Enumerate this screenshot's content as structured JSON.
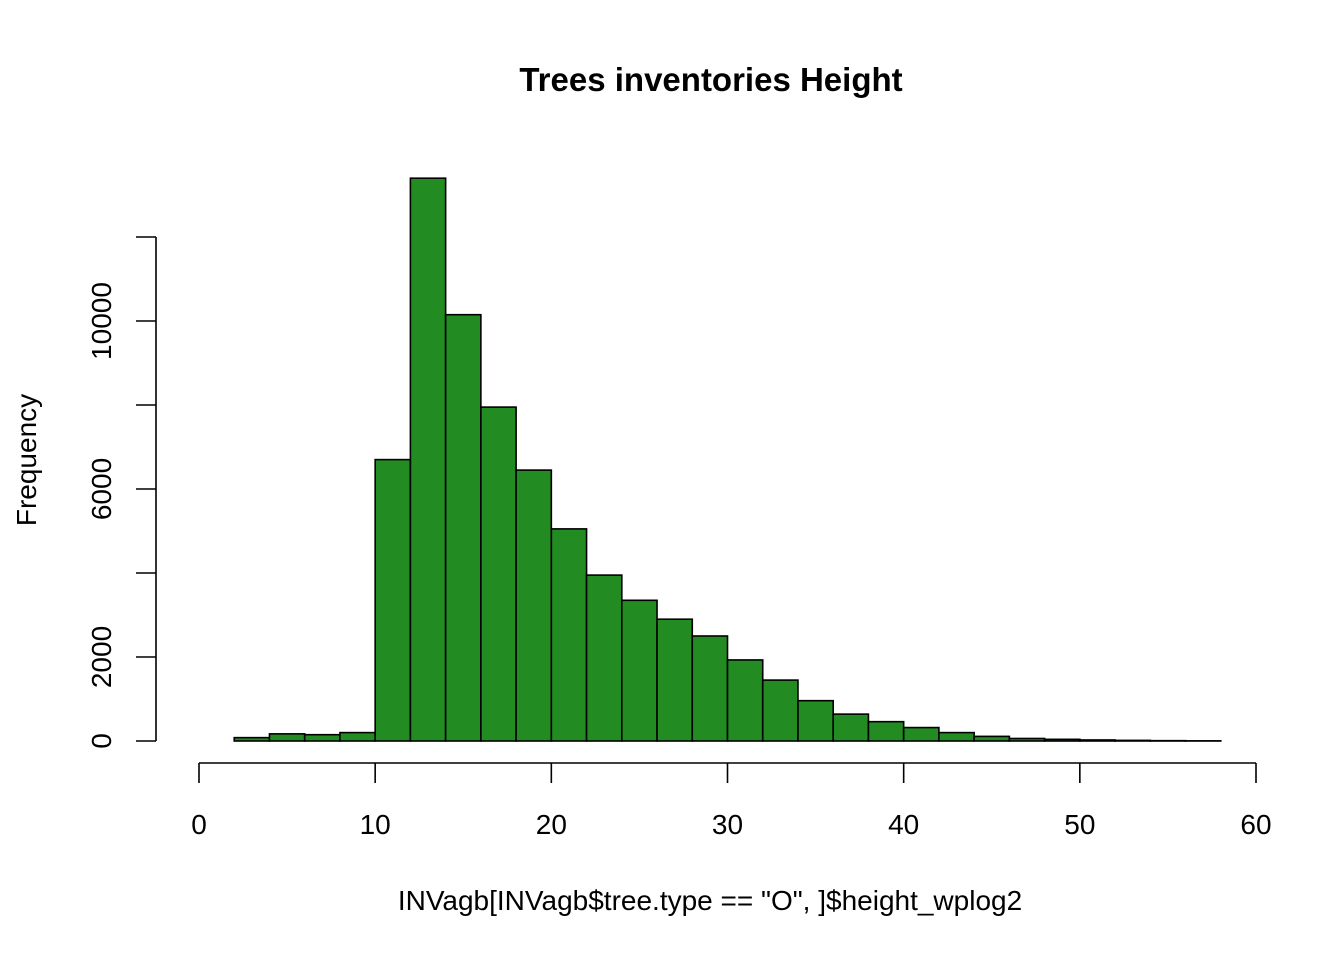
{
  "chart_data": {
    "type": "bar",
    "title": "Trees inventories Height",
    "xlabel": "INVagb[INVagb$tree.type == \"O\", ]$height_wplog2",
    "ylabel": "Frequency",
    "xlim": [
      0,
      60
    ],
    "ylim": [
      0,
      13400
    ],
    "x_ticks": [
      0,
      10,
      20,
      30,
      40,
      50,
      60
    ],
    "y_ticks": [
      0,
      2000,
      4000,
      6000,
      8000,
      10000,
      12000
    ],
    "y_tick_labels": [
      "0",
      "2000",
      "",
      "6000",
      "",
      "10000",
      ""
    ],
    "bin_width": 2,
    "bins": [
      {
        "start": 0,
        "end": 2,
        "value": 0
      },
      {
        "start": 2,
        "end": 4,
        "value": 80
      },
      {
        "start": 4,
        "end": 6,
        "value": 170
      },
      {
        "start": 6,
        "end": 8,
        "value": 150
      },
      {
        "start": 8,
        "end": 10,
        "value": 200
      },
      {
        "start": 10,
        "end": 12,
        "value": 6700
      },
      {
        "start": 12,
        "end": 14,
        "value": 13400
      },
      {
        "start": 14,
        "end": 16,
        "value": 10150
      },
      {
        "start": 16,
        "end": 18,
        "value": 7950
      },
      {
        "start": 18,
        "end": 20,
        "value": 6450
      },
      {
        "start": 20,
        "end": 22,
        "value": 5050
      },
      {
        "start": 22,
        "end": 24,
        "value": 3950
      },
      {
        "start": 24,
        "end": 26,
        "value": 3350
      },
      {
        "start": 26,
        "end": 28,
        "value": 2900
      },
      {
        "start": 28,
        "end": 30,
        "value": 2500
      },
      {
        "start": 30,
        "end": 32,
        "value": 1930
      },
      {
        "start": 32,
        "end": 34,
        "value": 1450
      },
      {
        "start": 34,
        "end": 36,
        "value": 960
      },
      {
        "start": 36,
        "end": 38,
        "value": 640
      },
      {
        "start": 38,
        "end": 40,
        "value": 460
      },
      {
        "start": 40,
        "end": 42,
        "value": 320
      },
      {
        "start": 42,
        "end": 44,
        "value": 200
      },
      {
        "start": 44,
        "end": 46,
        "value": 110
      },
      {
        "start": 46,
        "end": 48,
        "value": 60
      },
      {
        "start": 48,
        "end": 50,
        "value": 40
      },
      {
        "start": 50,
        "end": 52,
        "value": 25
      },
      {
        "start": 52,
        "end": 54,
        "value": 15
      },
      {
        "start": 54,
        "end": 56,
        "value": 8
      },
      {
        "start": 56,
        "end": 58,
        "value": 4
      }
    ],
    "bar_color": "#228B22",
    "grid": false,
    "legend": "none"
  }
}
